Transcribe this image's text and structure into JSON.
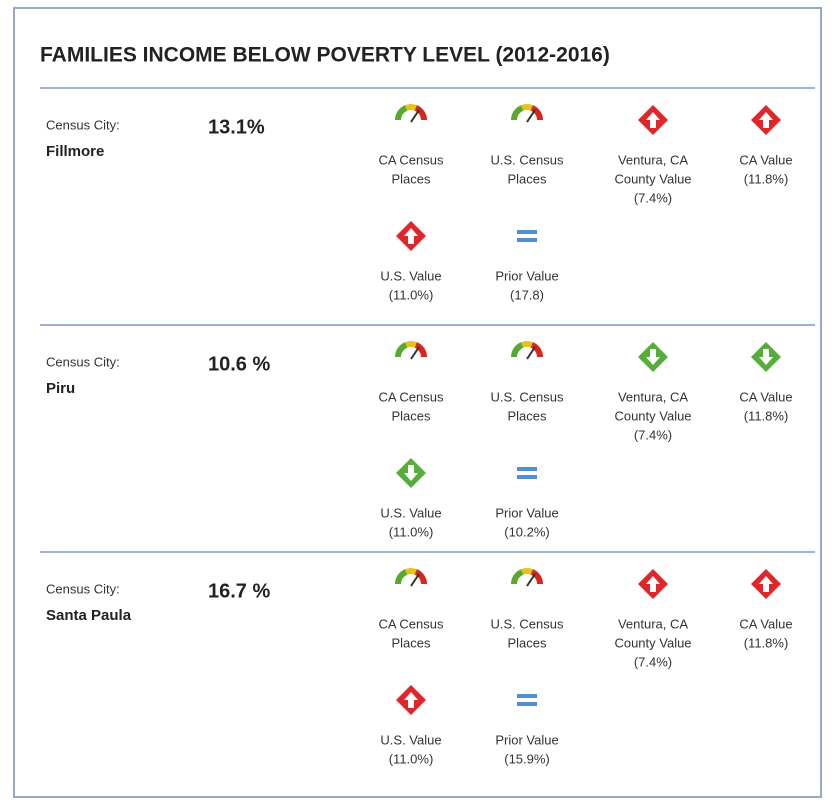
{
  "title": "FAMILIES INCOME BELOW POVERTY LEVEL (2012-2016)",
  "rows": [
    {
      "label": "Census City:",
      "name": "Fillmore",
      "value": "13.1%",
      "indicators": [
        {
          "icon": "gauge",
          "label": [
            "CA Census",
            "Places"
          ]
        },
        {
          "icon": "gauge",
          "label": [
            "U.S. Census",
            "Places"
          ]
        },
        {
          "icon": "up-red",
          "label": [
            "Ventura, CA",
            "County Value",
            "(7.4%)"
          ]
        },
        {
          "icon": "up-red",
          "label": [
            "CA Value",
            "(11.8%)"
          ]
        },
        {
          "icon": "up-red",
          "label": [
            "U.S. Value",
            "(11.0%)"
          ]
        },
        {
          "icon": "equal",
          "label": [
            "Prior Value",
            "(17.8)"
          ]
        }
      ]
    },
    {
      "label": "Census City:",
      "name": "Piru",
      "value": "10.6 %",
      "indicators": [
        {
          "icon": "gauge",
          "label": [
            "CA Census",
            "Places"
          ]
        },
        {
          "icon": "gauge",
          "label": [
            "U.S. Census",
            "Places"
          ]
        },
        {
          "icon": "down-green",
          "label": [
            "Ventura, CA",
            "County Value",
            "(7.4%)"
          ]
        },
        {
          "icon": "down-green",
          "label": [
            "CA Value",
            "(11.8%)"
          ]
        },
        {
          "icon": "down-green",
          "label": [
            "U.S. Value",
            "(11.0%)"
          ]
        },
        {
          "icon": "equal",
          "label": [
            "Prior Value",
            "(10.2%)"
          ]
        }
      ]
    },
    {
      "label": "Census City:",
      "name": "Santa Paula",
      "value": "16.7 %",
      "indicators": [
        {
          "icon": "gauge",
          "label": [
            "CA Census",
            "Places"
          ]
        },
        {
          "icon": "gauge",
          "label": [
            "U.S. Census",
            "Places"
          ]
        },
        {
          "icon": "up-red",
          "label": [
            "Ventura, CA",
            "County Value",
            "(7.4%)"
          ]
        },
        {
          "icon": "up-red",
          "label": [
            "CA Value",
            "(11.8%)"
          ]
        },
        {
          "icon": "up-red",
          "label": [
            "U.S. Value",
            "(11.0%)"
          ]
        },
        {
          "icon": "equal",
          "label": [
            "Prior Value",
            "(15.9%)"
          ]
        }
      ]
    }
  ]
}
